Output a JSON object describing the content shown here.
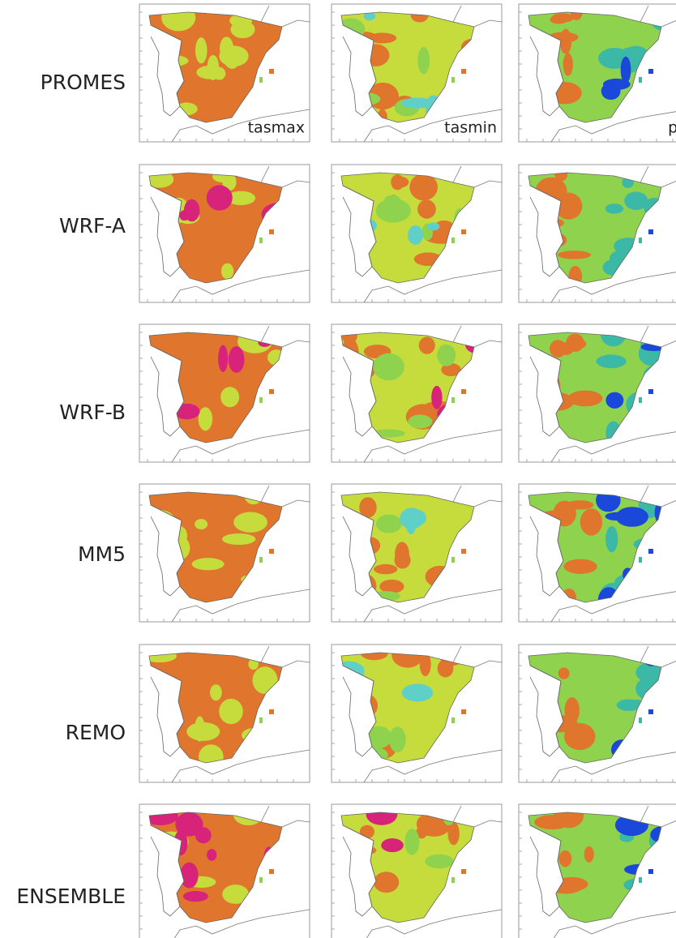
{
  "rows": [
    {
      "label": "PROMES"
    },
    {
      "label": "WRF-A"
    },
    {
      "label": "WRF-B"
    },
    {
      "label": "MM5"
    },
    {
      "label": "REMO"
    },
    {
      "label": "ENSEMBLE"
    }
  ],
  "columns": [
    {
      "label": "tasmax"
    },
    {
      "label": "tasmin"
    },
    {
      "label": "pr"
    }
  ]
}
